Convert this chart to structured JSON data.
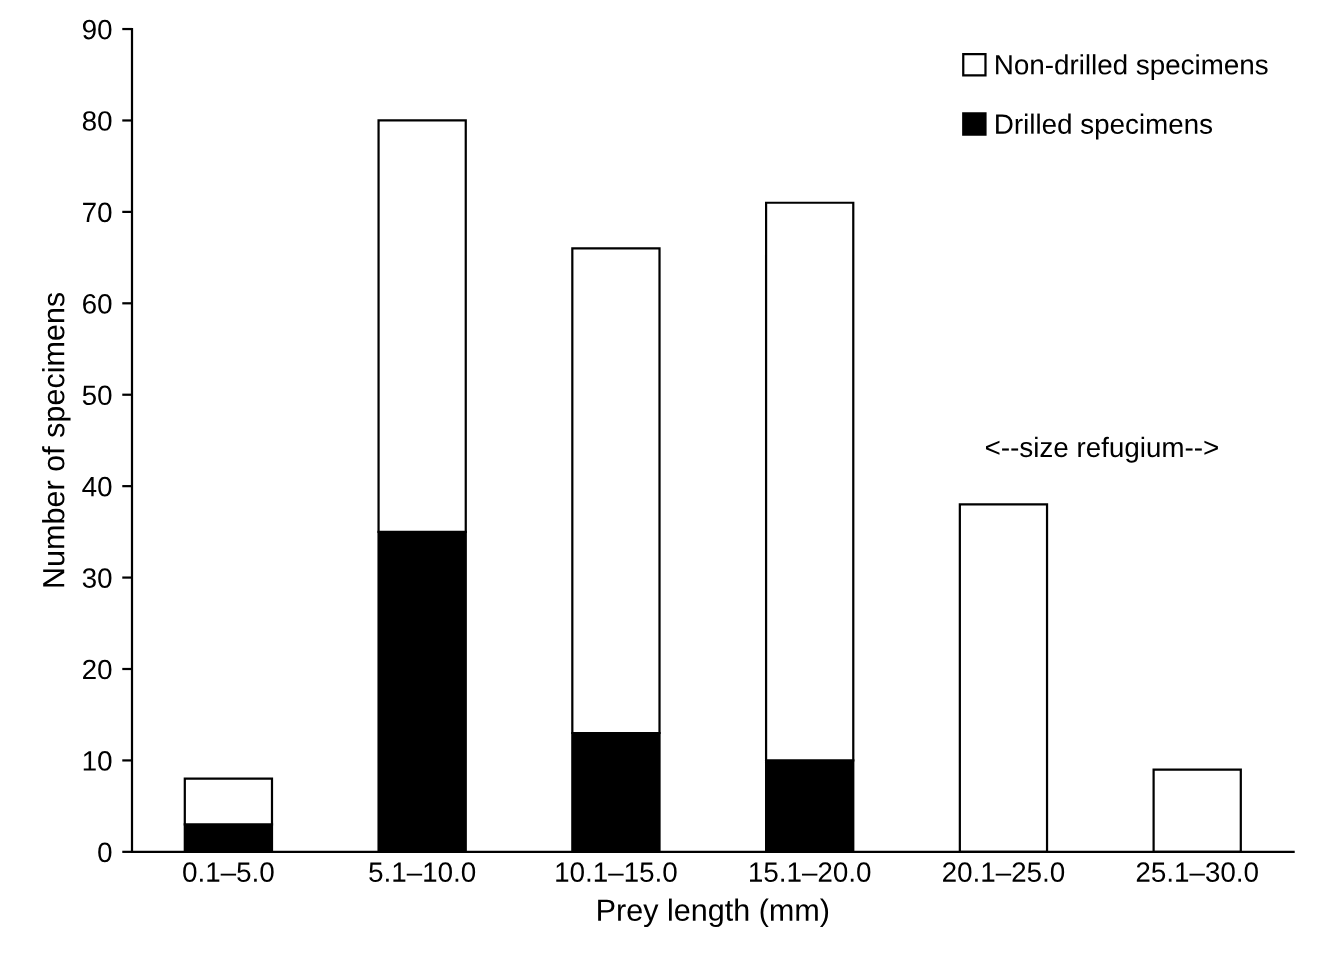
{
  "chart_data": {
    "type": "bar",
    "stacked": true,
    "xlabel": "Prey length (mm)",
    "ylabel": "Number of specimens",
    "categories": [
      "0.1–5.0",
      "5.1–10.0",
      "10.1–15.0",
      "15.1–20.0",
      "20.1–25.0",
      "25.1–30.0"
    ],
    "series": [
      {
        "name": "Drilled specimens",
        "color": "#000000",
        "values": [
          3,
          35,
          13,
          10,
          0,
          0
        ]
      },
      {
        "name": "Non-drilled specimens",
        "color": "#ffffff",
        "values": [
          5,
          45,
          53,
          61,
          38,
          9
        ]
      }
    ],
    "ylim": [
      0,
      90
    ],
    "yticks": [
      0,
      10,
      20,
      30,
      40,
      50,
      60,
      70,
      80,
      90
    ],
    "grid": false,
    "legend": "top right",
    "annotations": [
      "<--size refugium-->"
    ]
  }
}
